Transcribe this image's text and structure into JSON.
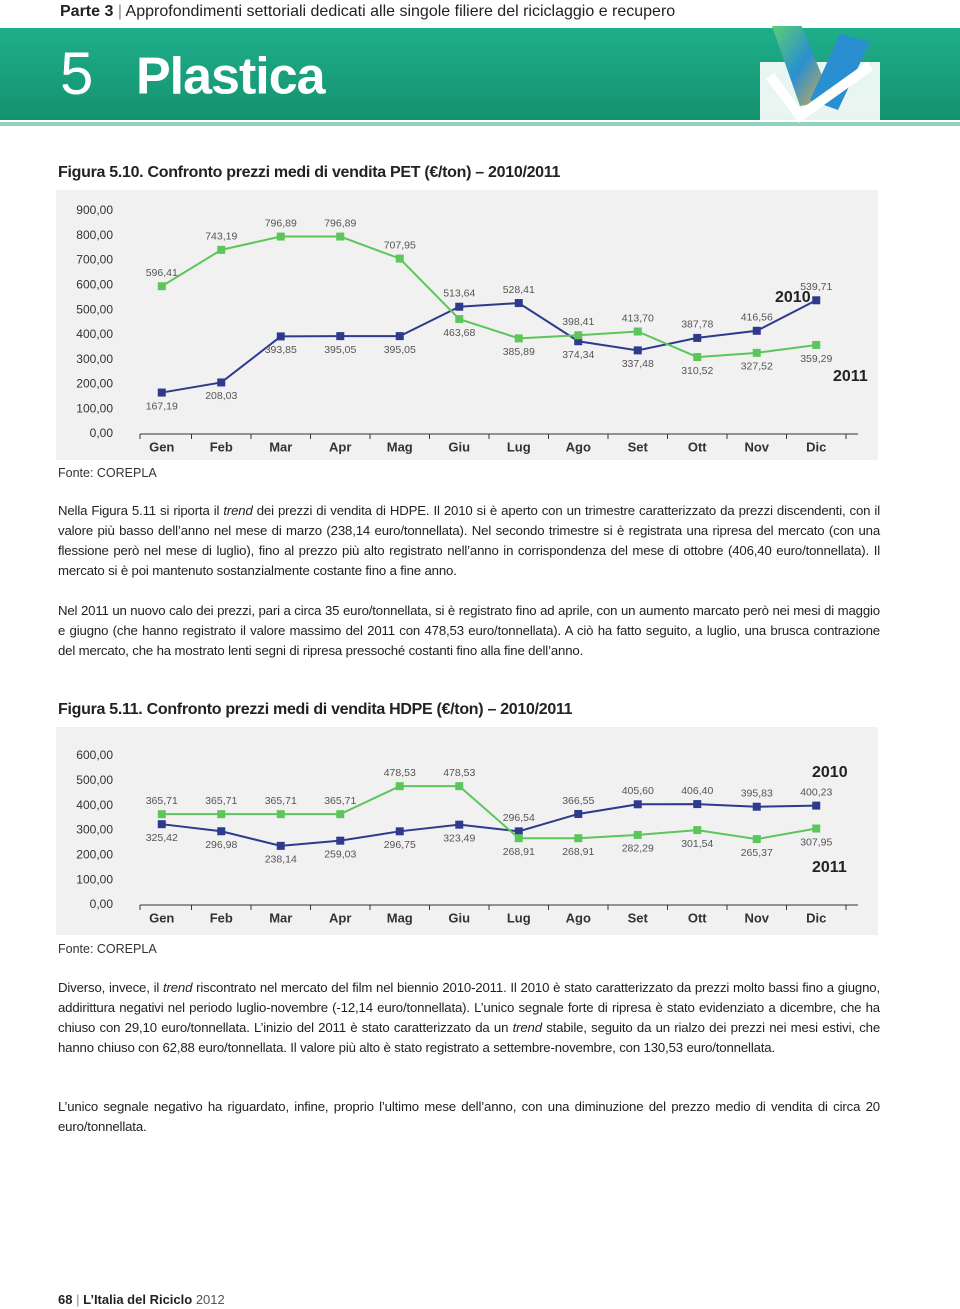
{
  "header": {
    "part": "Parte 3",
    "subtitle": "Approfondimenti settoriali dedicati alle singole filiere del riciclaggio e recupero",
    "chapter_number": "5",
    "chapter_title": "Plastica"
  },
  "chart_data": [
    {
      "type": "line",
      "title": "Figura 5.10. Confronto prezzi medi di vendita PET (€/ton) – 2010/2011",
      "source": "Fonte: COREPLA",
      "categories": [
        "Gen",
        "Feb",
        "Mar",
        "Apr",
        "Mag",
        "Giu",
        "Lug",
        "Ago",
        "Set",
        "Ott",
        "Nov",
        "Dic"
      ],
      "series": [
        {
          "name": "2010",
          "color": "#2e3a8c",
          "values": [
            167.19,
            208.03,
            393.85,
            395.05,
            395.05,
            513.64,
            528.41,
            374.34,
            337.48,
            387.78,
            416.56,
            539.71
          ],
          "value_labels": [
            "167,19",
            "208,03",
            "393,85",
            "395,05",
            "395,05",
            "513,64",
            "528,41",
            "374,34",
            "337,48",
            "387,78",
            "416,56",
            "539,71"
          ]
        },
        {
          "name": "2011",
          "color": "#5cc65a",
          "values": [
            596.41,
            743.19,
            796.89,
            796.89,
            707.95,
            463.68,
            385.89,
            398.41,
            413.7,
            310.52,
            327.52,
            359.29
          ],
          "value_labels": [
            "596,41",
            "743,19",
            "796,89",
            "796,89",
            "707,95",
            "463,68",
            "385,89",
            "398,41",
            "413,70",
            "310,52",
            "327,52",
            "359,29"
          ]
        }
      ],
      "ylim": [
        0,
        900
      ],
      "yticks": [
        {
          "value": 0,
          "label": "0,00"
        },
        {
          "value": 100,
          "label": "100,00"
        },
        {
          "value": 200,
          "label": "200,00"
        },
        {
          "value": 300,
          "label": "300,00"
        },
        {
          "value": 400,
          "label": "400,00"
        },
        {
          "value": 500,
          "label": "500,00"
        },
        {
          "value": 600,
          "label": "600,00"
        },
        {
          "value": 700,
          "label": "700,00"
        },
        {
          "value": 800,
          "label": "800,00"
        },
        {
          "value": 900,
          "label": "900,00"
        }
      ]
    },
    {
      "type": "line",
      "title": "Figura 5.11. Confronto prezzi medi di vendita HDPE (€/ton) – 2010/2011",
      "source": "Fonte: COREPLA",
      "categories": [
        "Gen",
        "Feb",
        "Mar",
        "Apr",
        "Mag",
        "Giu",
        "Lug",
        "Ago",
        "Set",
        "Ott",
        "Nov",
        "Dic"
      ],
      "series": [
        {
          "name": "2010",
          "color": "#2e3a8c",
          "values": [
            325.42,
            296.98,
            238.14,
            259.03,
            296.75,
            323.49,
            296.54,
            366.55,
            405.6,
            406.4,
            395.83,
            400.23
          ],
          "value_labels": [
            "325,42",
            "296,98",
            "238,14",
            "259,03",
            "296,75",
            "323,49",
            "296,54",
            "366,55",
            "405,60",
            "406,40",
            "395,83",
            "400,23"
          ]
        },
        {
          "name": "2011",
          "color": "#5cc65a",
          "values": [
            365.71,
            365.71,
            365.71,
            365.71,
            478.53,
            478.53,
            268.91,
            268.91,
            282.29,
            301.54,
            265.37,
            307.95
          ],
          "value_labels": [
            "365,71",
            "365,71",
            "365,71",
            "365,71",
            "478,53",
            "478,53",
            "268,91",
            "268,91",
            "282,29",
            "301,54",
            "265,37",
            "307,95"
          ]
        }
      ],
      "ylim": [
        0,
        600
      ],
      "yticks": [
        {
          "value": 0,
          "label": "0,00"
        },
        {
          "value": 100,
          "label": "100,00"
        },
        {
          "value": 200,
          "label": "200,00"
        },
        {
          "value": 300,
          "label": "300,00"
        },
        {
          "value": 400,
          "label": "400,00"
        },
        {
          "value": 500,
          "label": "500,00"
        },
        {
          "value": 600,
          "label": "600,00"
        }
      ]
    }
  ],
  "paragraphs": [
    [
      {
        "text": "Nella Figura 5.11 si riporta il "
      },
      {
        "text": "trend",
        "italic": true
      },
      {
        "text": " dei prezzi di vendita di HDPE. Il 2010 si è aperto con un trimestre caratterizzato da prezzi discendenti, con il valore più basso dell’anno nel mese di marzo (238,14 euro/tonnellata). Nel secondo trimestre si è registrata una ripresa del mercato (con una flessione però nel mese di luglio), fino al prezzo più alto registrato nell’anno in corrispondenza del mese di ottobre (406,40 euro/tonnellata). Il mercato si è poi mantenuto sostanzialmente costante fino a fine anno."
      }
    ],
    [
      {
        "text": "Nel 2011 un nuovo calo dei prezzi, pari a circa 35 euro/tonnellata, si è registrato fino ad aprile, con un aumento marcato però nei mesi di maggio e giugno (che hanno registrato il valore massimo del 2011 con 478,53 euro/tonnellata). A ciò ha fatto seguito, a luglio, una brusca contrazione del mercato, che ha mostrato lenti segni di ripresa pressoché costanti fino alla fine dell’anno."
      }
    ],
    [
      {
        "text": "Diverso, invece, il "
      },
      {
        "text": "trend",
        "italic": true
      },
      {
        "text": " riscontrato nel mercato del film nel biennio 2010-2011. Il 2010 è stato caratterizzato da prezzi molto bassi fino a giugno, addirittura negativi nel periodo luglio-novembre (-12,14 euro/tonnellata). L’unico segnale forte di ripresa è stato evidenziato a dicembre, che ha chiuso con 29,10 euro/tonnellata. L’inizio del 2011 è stato caratterizzato da un "
      },
      {
        "text": "trend",
        "italic": true
      },
      {
        "text": " stabile, seguito da un rialzo dei prezzi nei mesi estivi, che hanno chiuso con 62,88 euro/tonnellata. Il valore più alto è stato registrato a settembre-novembre, con 130,53 euro/tonnellata."
      }
    ],
    [
      {
        "text": "L’unico segnale negativo ha riguardato, infine, proprio l’ultimo mese dell’anno, con una diminuzione del prezzo medio di vendita di circa 20 euro/tonnellata."
      }
    ]
  ],
  "footer": {
    "page": "68",
    "publication": "L’Italia del Riciclo",
    "year": "2012"
  }
}
